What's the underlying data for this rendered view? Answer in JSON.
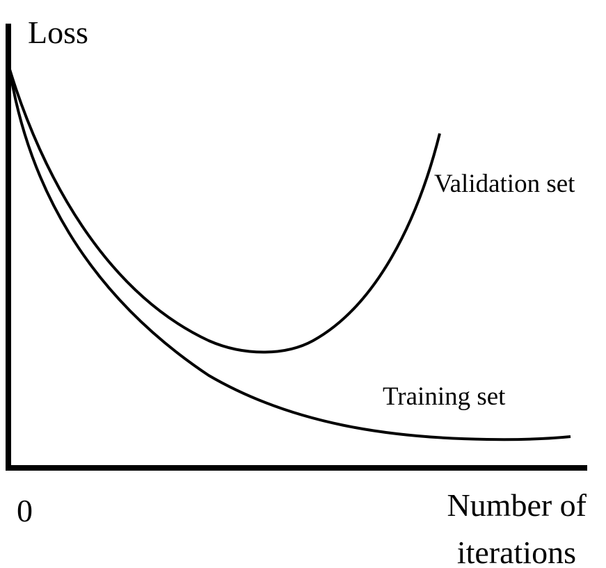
{
  "axes": {
    "y_label": "Loss",
    "origin": "0",
    "x_label_lines": [
      "Number of",
      "iterations"
    ]
  },
  "curves": [
    {
      "label": "Validation set"
    },
    {
      "label": "Training set"
    }
  ]
}
